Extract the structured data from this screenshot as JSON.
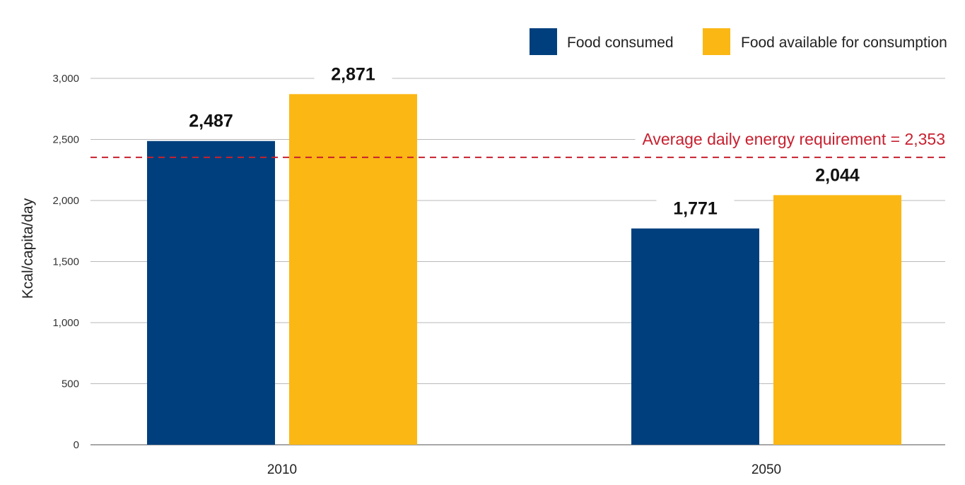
{
  "chart_data": {
    "type": "bar",
    "categories": [
      "2010",
      "2050"
    ],
    "series": [
      {
        "name": "Food consumed",
        "values": [
          2487,
          1771
        ],
        "labels": [
          "2,487",
          "1,771"
        ],
        "color": "#003f7d"
      },
      {
        "name": "Food available for consumption",
        "values": [
          2871,
          2044
        ],
        "labels": [
          "2,871",
          "2,044"
        ],
        "color": "#fbb714"
      }
    ],
    "ylabel": "Kcal/capita/day",
    "ylim": [
      0,
      3000
    ],
    "yticks": [
      0,
      500,
      1000,
      1500,
      2000,
      2500,
      3000
    ],
    "ytick_labels": [
      "0",
      "500",
      "1,000",
      "1,500",
      "2,000",
      "2,500",
      "3,000"
    ],
    "grid": true,
    "legend": "top-right",
    "reference_line": {
      "value": 2353,
      "label": "Average daily energy requirement = 2,353",
      "color": "#c8202f"
    }
  }
}
